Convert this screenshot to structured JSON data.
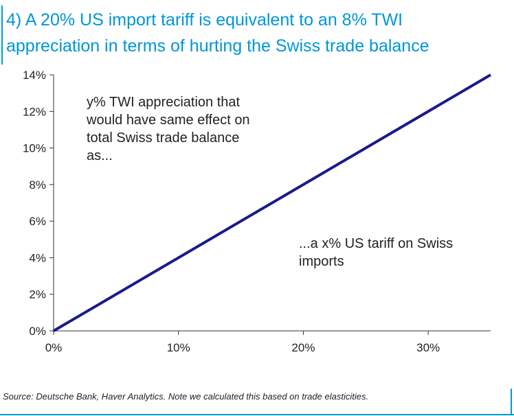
{
  "title": {
    "line1": "4) A 20% US import tariff is equivalent to an 8% TWI",
    "line2": "appreciation in terms of hurting the Swiss trade balance"
  },
  "source": "Source: Deutsche Bank, Haver Analytics. Note we calculated this based on trade elasticities.",
  "colors": {
    "accent": "#0096d6",
    "series": "#1a1a8c"
  },
  "chart_data": {
    "type": "line",
    "title": "4) A 20% US import tariff is equivalent to an 8% TWI appreciation in terms of hurting the Swiss trade balance",
    "xlabel": "",
    "ylabel": "",
    "xlim": [
      0,
      0.35
    ],
    "ylim": [
      0,
      0.14
    ],
    "x_ticks": [
      0,
      0.1,
      0.2,
      0.3
    ],
    "x_tick_labels": [
      "0%",
      "10%",
      "20%",
      "30%"
    ],
    "y_ticks": [
      0,
      0.02,
      0.04,
      0.06,
      0.08,
      0.1,
      0.12,
      0.14
    ],
    "y_tick_labels": [
      "0%",
      "2%",
      "4%",
      "6%",
      "8%",
      "10%",
      "12%",
      "14%"
    ],
    "grid": false,
    "legend": "none",
    "series": [
      {
        "x": [
          0,
          0.35
        ],
        "y": [
          0,
          0.14
        ]
      }
    ],
    "annotations": [
      {
        "lines": [
          "y% TWI appreciation that",
          "would have same effect on",
          "total Swiss trade balance",
          "as..."
        ]
      },
      {
        "lines": [
          "...a x% US tariff on Swiss",
          "imports"
        ]
      }
    ]
  }
}
